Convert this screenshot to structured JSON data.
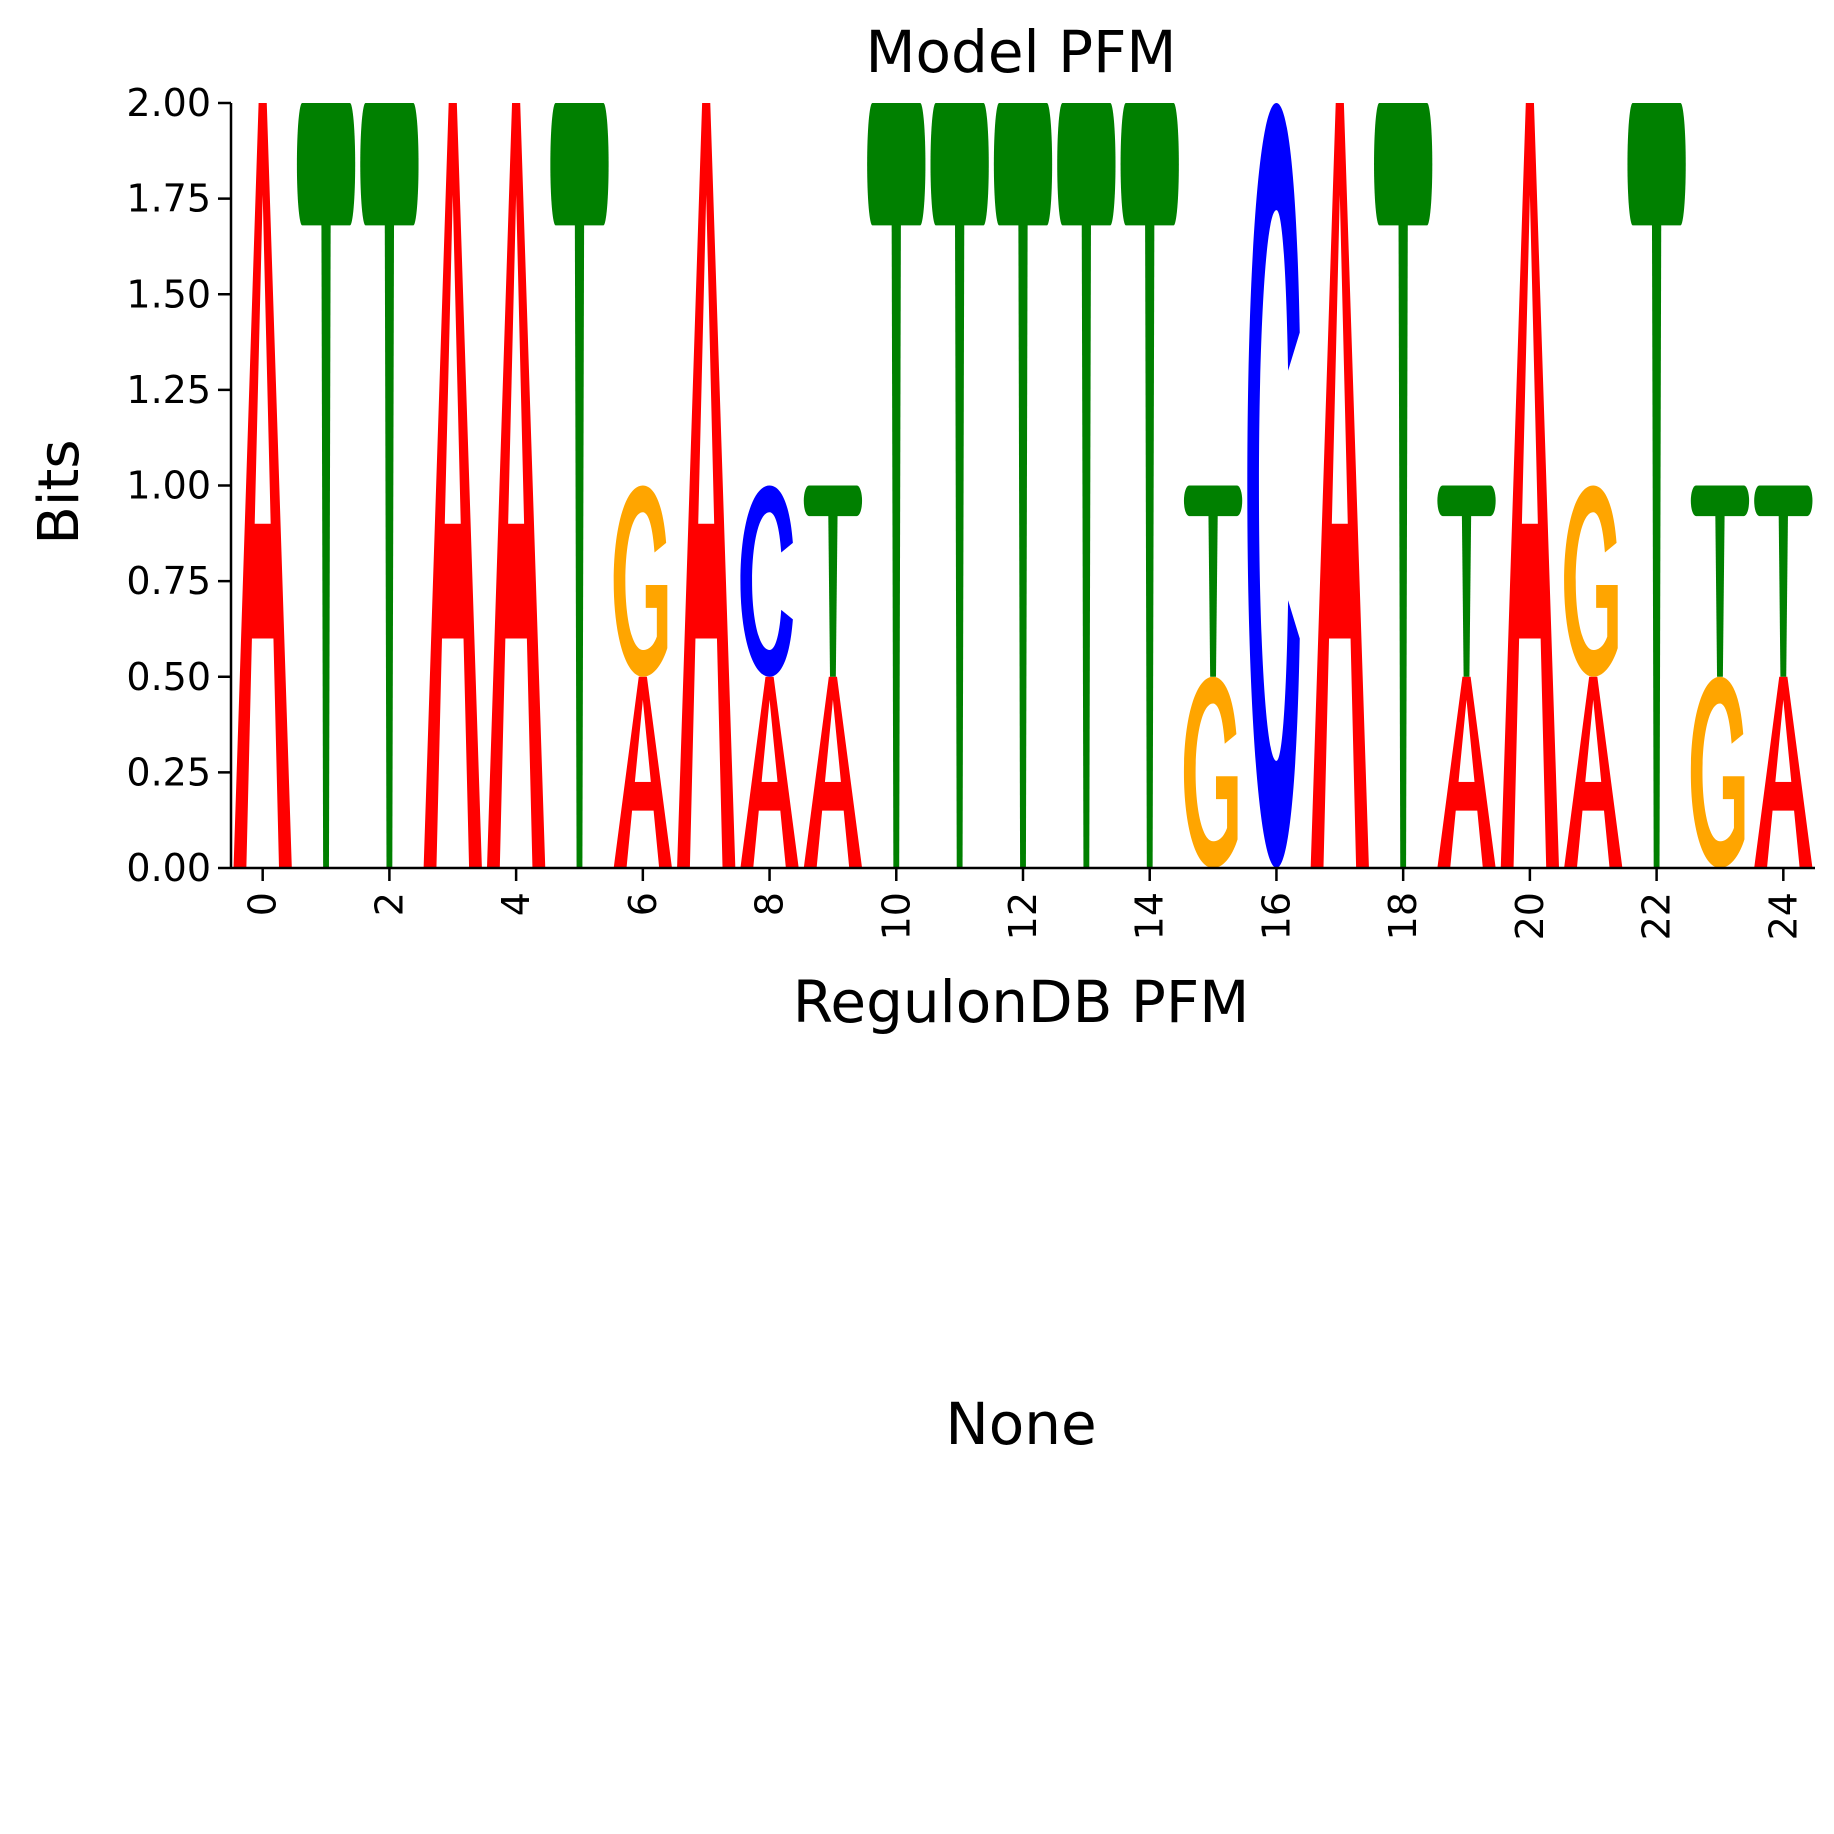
{
  "chart_data": {
    "type": "sequence-logo",
    "title": "Model PFM",
    "xlabel": "RegulonDB PFM",
    "ylabel": "Bits",
    "ylim": [
      0,
      2
    ],
    "xlim": [
      -0.5,
      24.5
    ],
    "yticks": [
      "0.00",
      "0.25",
      "0.50",
      "0.75",
      "1.00",
      "1.25",
      "1.50",
      "1.75",
      "2.00"
    ],
    "xticks": [
      "0",
      "2",
      "4",
      "6",
      "8",
      "10",
      "12",
      "14",
      "16",
      "18",
      "20",
      "22",
      "24"
    ],
    "grid": false,
    "colors": {
      "A": "#ff0000",
      "C": "#0000ff",
      "G": "#ffa500",
      "T": "#008000"
    },
    "positions": [
      {
        "x": 0,
        "letters": [
          {
            "base": "A",
            "height": 2.0
          }
        ]
      },
      {
        "x": 1,
        "letters": [
          {
            "base": "T",
            "height": 2.0
          }
        ]
      },
      {
        "x": 2,
        "letters": [
          {
            "base": "T",
            "height": 2.0
          }
        ]
      },
      {
        "x": 3,
        "letters": [
          {
            "base": "A",
            "height": 2.0
          }
        ]
      },
      {
        "x": 4,
        "letters": [
          {
            "base": "A",
            "height": 2.0
          }
        ]
      },
      {
        "x": 5,
        "letters": [
          {
            "base": "T",
            "height": 2.0
          }
        ]
      },
      {
        "x": 6,
        "letters": [
          {
            "base": "A",
            "height": 0.5
          },
          {
            "base": "G",
            "height": 0.5
          }
        ]
      },
      {
        "x": 7,
        "letters": [
          {
            "base": "A",
            "height": 2.0
          }
        ]
      },
      {
        "x": 8,
        "letters": [
          {
            "base": "A",
            "height": 0.5
          },
          {
            "base": "C",
            "height": 0.5
          }
        ]
      },
      {
        "x": 9,
        "letters": [
          {
            "base": "A",
            "height": 0.5
          },
          {
            "base": "T",
            "height": 0.5
          }
        ]
      },
      {
        "x": 10,
        "letters": [
          {
            "base": "T",
            "height": 2.0
          }
        ]
      },
      {
        "x": 11,
        "letters": [
          {
            "base": "T",
            "height": 2.0
          }
        ]
      },
      {
        "x": 12,
        "letters": [
          {
            "base": "T",
            "height": 2.0
          }
        ]
      },
      {
        "x": 13,
        "letters": [
          {
            "base": "T",
            "height": 2.0
          }
        ]
      },
      {
        "x": 14,
        "letters": [
          {
            "base": "T",
            "height": 2.0
          }
        ]
      },
      {
        "x": 15,
        "letters": [
          {
            "base": "G",
            "height": 0.5
          },
          {
            "base": "T",
            "height": 0.5
          }
        ]
      },
      {
        "x": 16,
        "letters": [
          {
            "base": "C",
            "height": 2.0
          }
        ]
      },
      {
        "x": 17,
        "letters": [
          {
            "base": "A",
            "height": 2.0
          }
        ]
      },
      {
        "x": 18,
        "letters": [
          {
            "base": "T",
            "height": 2.0
          }
        ]
      },
      {
        "x": 19,
        "letters": [
          {
            "base": "A",
            "height": 0.5
          },
          {
            "base": "T",
            "height": 0.5
          }
        ]
      },
      {
        "x": 20,
        "letters": [
          {
            "base": "A",
            "height": 2.0
          }
        ]
      },
      {
        "x": 21,
        "letters": [
          {
            "base": "A",
            "height": 0.5
          },
          {
            "base": "G",
            "height": 0.5
          }
        ]
      },
      {
        "x": 22,
        "letters": [
          {
            "base": "T",
            "height": 2.0
          }
        ]
      },
      {
        "x": 23,
        "letters": [
          {
            "base": "G",
            "height": 0.5
          },
          {
            "base": "T",
            "height": 0.5
          }
        ]
      },
      {
        "x": 24,
        "letters": [
          {
            "base": "A",
            "height": 0.5
          },
          {
            "base": "T",
            "height": 0.5
          }
        ]
      }
    ],
    "bottom_panel_title": "None"
  }
}
